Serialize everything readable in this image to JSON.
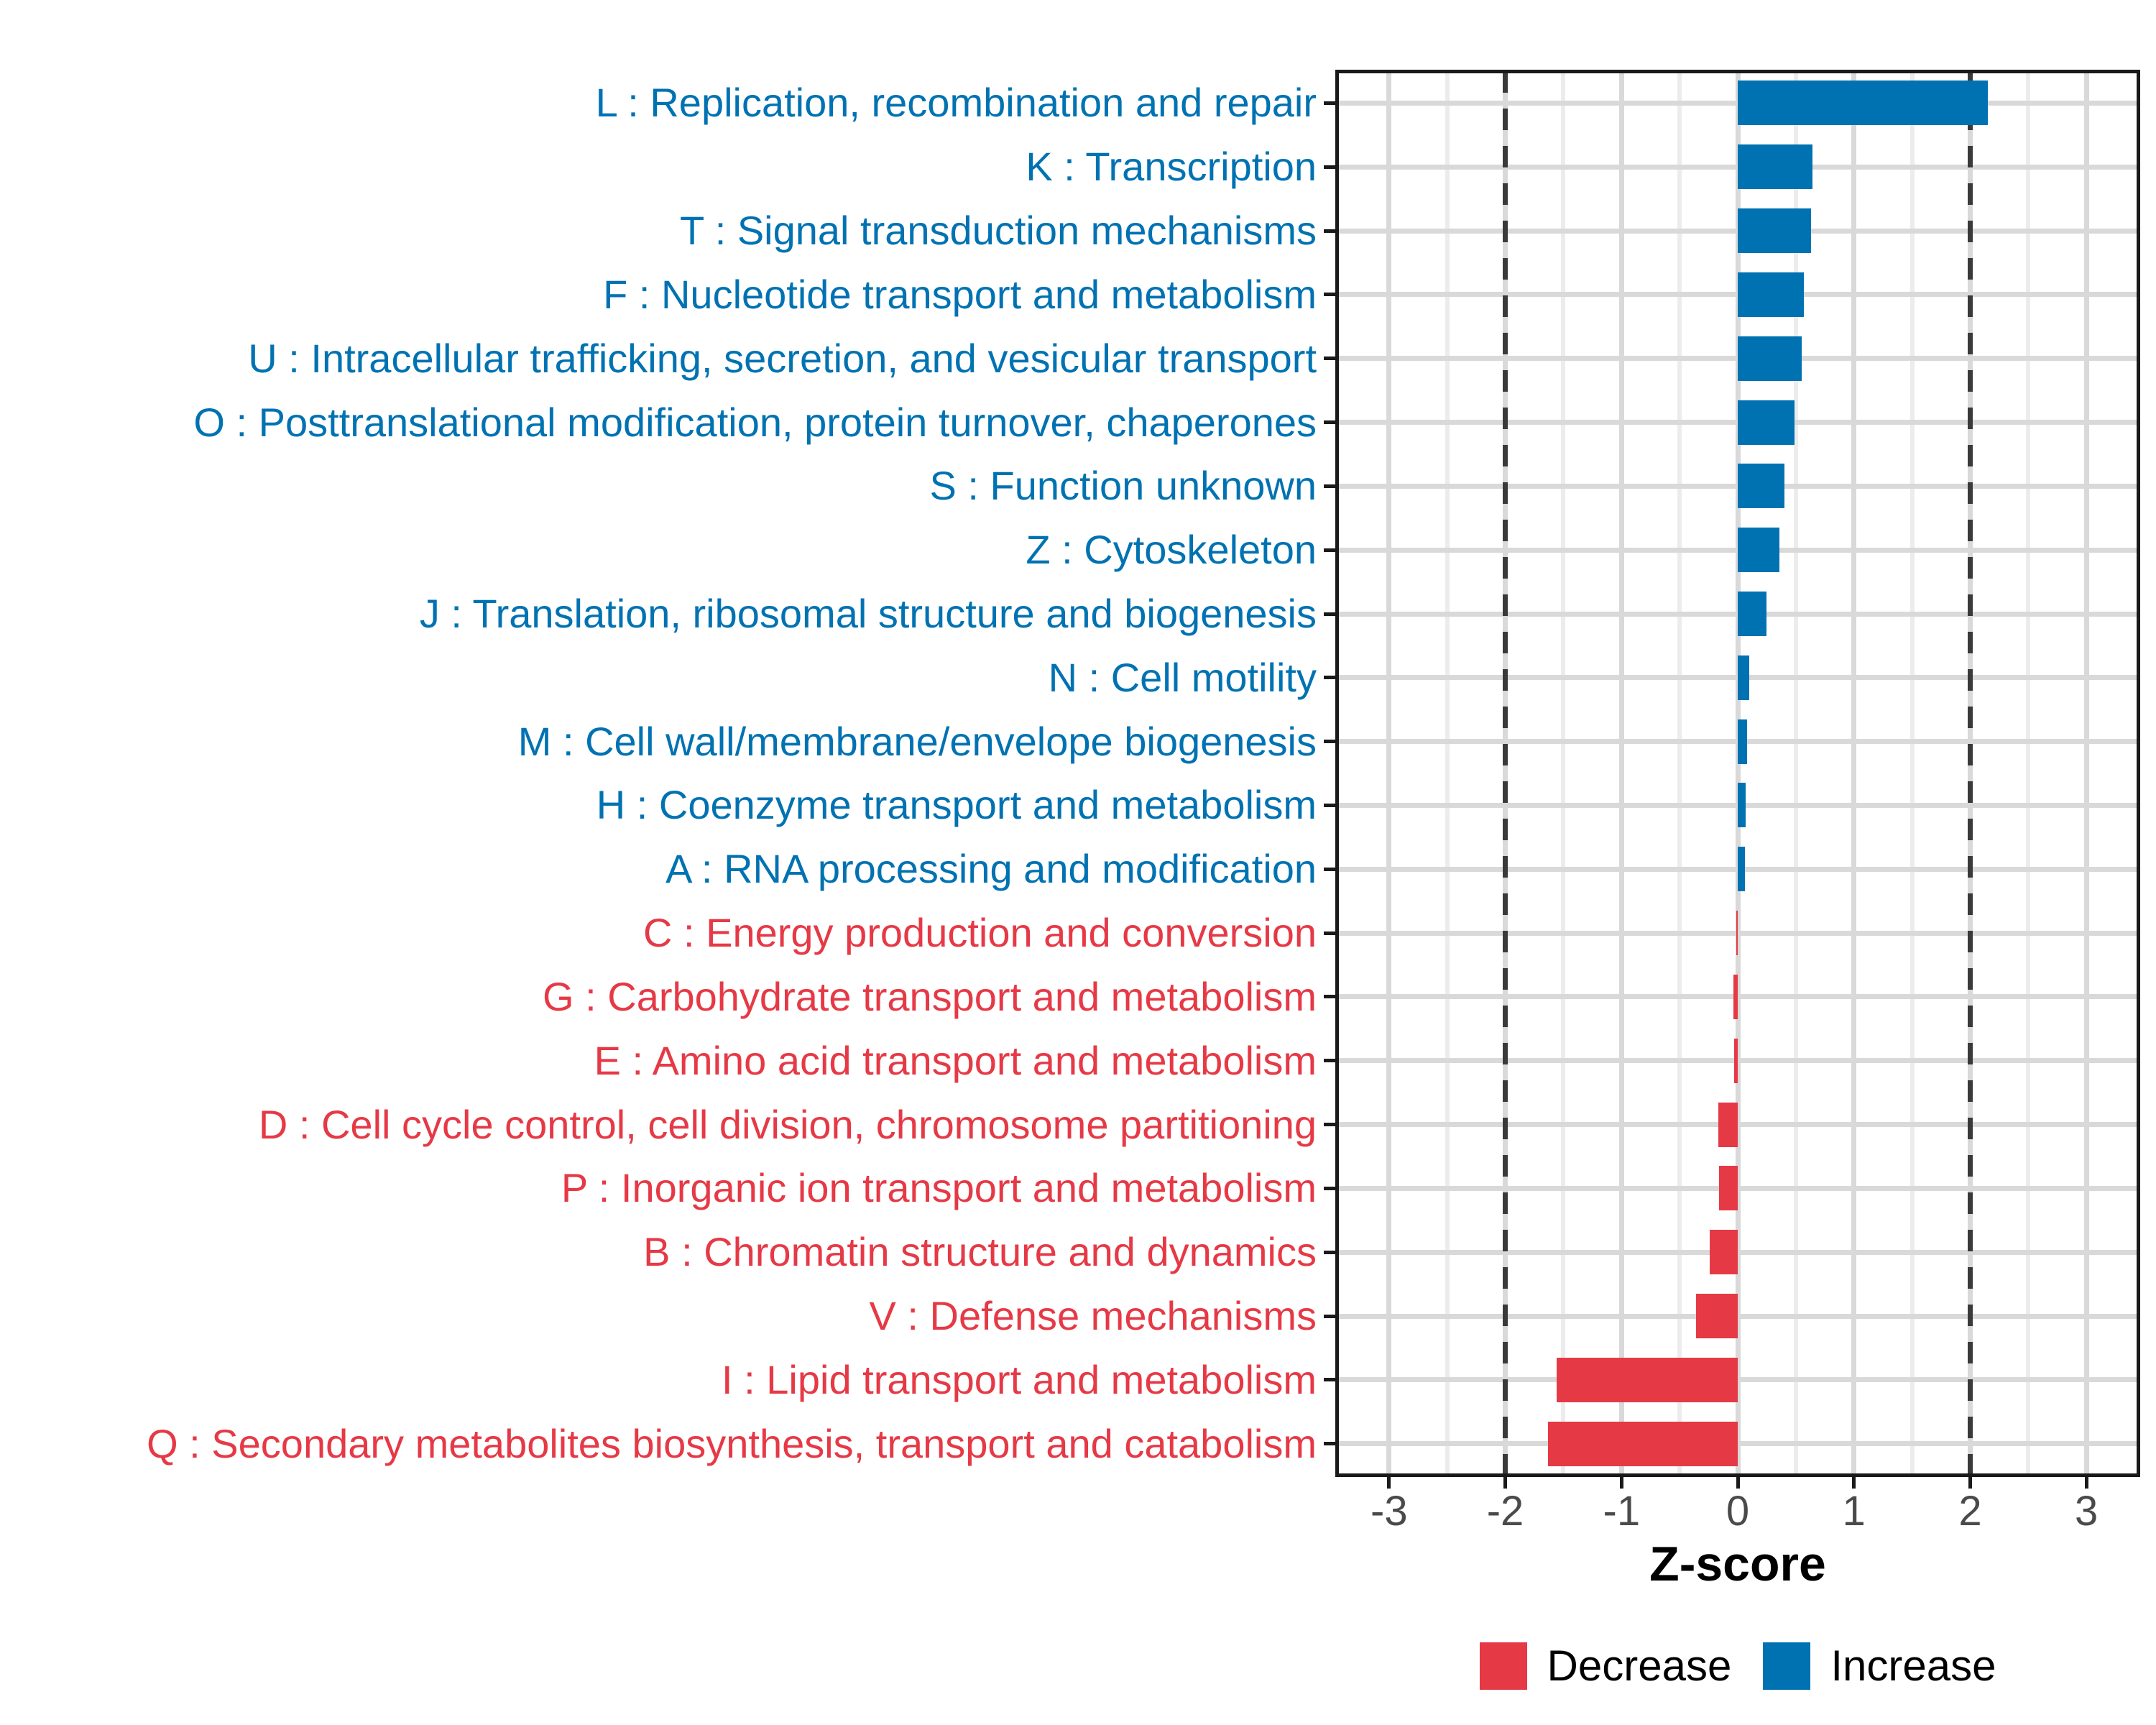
{
  "chart_data": {
    "type": "bar",
    "orientation": "horizontal",
    "title": "",
    "xlabel": "Z-score",
    "ylabel": "",
    "xlim": [
      -3.45,
      3.45
    ],
    "x_ticks": [
      "-3",
      "-2",
      "-1",
      "0",
      "1",
      "2",
      "3"
    ],
    "x_tick_values": [
      -3,
      -2,
      -1,
      0,
      1,
      2,
      3
    ],
    "grid": {
      "major_color": "#d9d9d9",
      "minor_color": "#ececec"
    },
    "reference_lines": {
      "values": [
        -2,
        2
      ],
      "style": "dashed",
      "color": "#3a3a3a"
    },
    "colors": {
      "increase": "#0072B2",
      "decrease": "#E63946"
    },
    "legend": {
      "position": "bottom-center",
      "entries": [
        {
          "label": "Decrease",
          "color": "#E63946"
        },
        {
          "label": "Increase",
          "color": "#0072B2"
        }
      ]
    },
    "categories": [
      {
        "code": "L",
        "label": "L : Replication, recombination and repair",
        "value": 2.15,
        "group": "increase"
      },
      {
        "code": "K",
        "label": "K : Transcription",
        "value": 0.64,
        "group": "increase"
      },
      {
        "code": "T",
        "label": "T : Signal transduction mechanisms",
        "value": 0.63,
        "group": "increase"
      },
      {
        "code": "F",
        "label": "F : Nucleotide transport and metabolism",
        "value": 0.57,
        "group": "increase"
      },
      {
        "code": "U",
        "label": "U : Intracellular trafficking, secretion, and vesicular transport",
        "value": 0.55,
        "group": "increase"
      },
      {
        "code": "O",
        "label": "O : Posttranslational modification, protein turnover, chaperones",
        "value": 0.49,
        "group": "increase"
      },
      {
        "code": "S",
        "label": "S : Function unknown",
        "value": 0.4,
        "group": "increase"
      },
      {
        "code": "Z",
        "label": "Z : Cytoskeleton",
        "value": 0.36,
        "group": "increase"
      },
      {
        "code": "J",
        "label": "J : Translation, ribosomal structure and biogenesis",
        "value": 0.25,
        "group": "increase"
      },
      {
        "code": "N",
        "label": "N : Cell motility",
        "value": 0.1,
        "group": "increase"
      },
      {
        "code": "M",
        "label": "M : Cell wall/membrane/envelope biogenesis",
        "value": 0.08,
        "group": "increase"
      },
      {
        "code": "H",
        "label": "H : Coenzyme transport and metabolism",
        "value": 0.07,
        "group": "increase"
      },
      {
        "code": "A",
        "label": "A : RNA processing and modification",
        "value": 0.06,
        "group": "increase"
      },
      {
        "code": "C",
        "label": "C : Energy production and conversion",
        "value": -0.01,
        "group": "decrease"
      },
      {
        "code": "G",
        "label": "G : Carbohydrate transport and metabolism",
        "value": -0.04,
        "group": "decrease"
      },
      {
        "code": "E",
        "label": "E : Amino acid transport and metabolism",
        "value": -0.03,
        "group": "decrease"
      },
      {
        "code": "D",
        "label": "D : Cell cycle control, cell division, chromosome partitioning",
        "value": -0.17,
        "group": "decrease"
      },
      {
        "code": "P",
        "label": "P : Inorganic ion transport and metabolism",
        "value": -0.16,
        "group": "decrease"
      },
      {
        "code": "B",
        "label": "B : Chromatin structure and dynamics",
        "value": -0.24,
        "group": "decrease"
      },
      {
        "code": "V",
        "label": "V : Defense mechanisms",
        "value": -0.36,
        "group": "decrease"
      },
      {
        "code": "I",
        "label": "I : Lipid transport and metabolism",
        "value": -1.56,
        "group": "decrease"
      },
      {
        "code": "Q",
        "label": "Q : Secondary metabolites biosynthesis, transport and catabolism",
        "value": -1.63,
        "group": "decrease"
      }
    ]
  }
}
